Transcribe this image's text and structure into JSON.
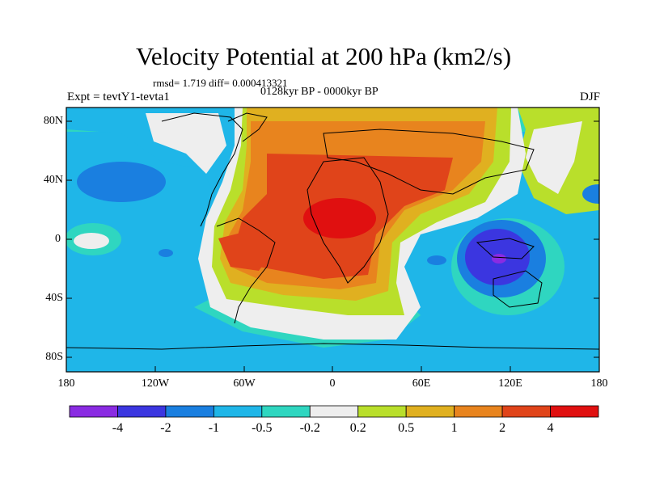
{
  "header": {
    "title": "Velocity Potential at 200 hPa (km2/s)",
    "stats": "rmsd= 1.719 diff= 0.000413321",
    "left_label": "Expt = tevtY1-tevta1",
    "center_label": "0128kyr BP - 0000kyr BP",
    "right_label": "DJF"
  },
  "axes": {
    "lat_labels": [
      "80N",
      "40N",
      "0",
      "40S",
      "80S"
    ],
    "lon_labels": [
      "180",
      "120W",
      "60W",
      "0",
      "60E",
      "120E",
      "180"
    ]
  },
  "colorbar": {
    "labels": [
      "-4",
      "-2",
      "-1",
      "-0.5",
      "-0.2",
      "0.2",
      "0.5",
      "1",
      "2",
      "4"
    ],
    "colors": [
      "#8a2be2",
      "#3b36e0",
      "#1a7fe0",
      "#1fb6e8",
      "#2fd6c0",
      "#eeeeee",
      "#b9df2b",
      "#e0b020",
      "#e8841e",
      "#e0441a",
      "#e01010"
    ]
  }
}
